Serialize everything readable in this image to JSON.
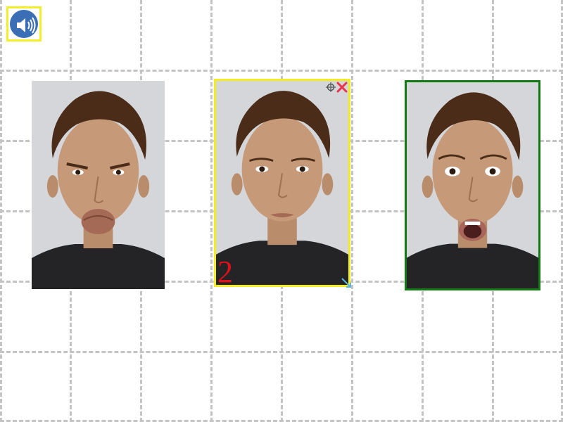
{
  "toolbar": {
    "audio_button": {
      "icon": "speaker-icon",
      "accent": "#3a6fb6",
      "border": "#f2ee2a"
    }
  },
  "tiles": [
    {
      "expression": "pout",
      "selected": false,
      "border": null
    },
    {
      "expression": "neutral",
      "selected": true,
      "border": "#f3ec20",
      "number": "2"
    },
    {
      "expression": "surprise",
      "selected": false,
      "border": "#137a13"
    }
  ],
  "colors": {
    "grid": "#c4c4c4",
    "number": "#e0101a",
    "remove": "#e8354d",
    "resize": "#5ab4e6",
    "backdrop": "#d4d6da",
    "shirt": "#242426",
    "skin": "#c69a78",
    "hair": "#4a2c19"
  }
}
